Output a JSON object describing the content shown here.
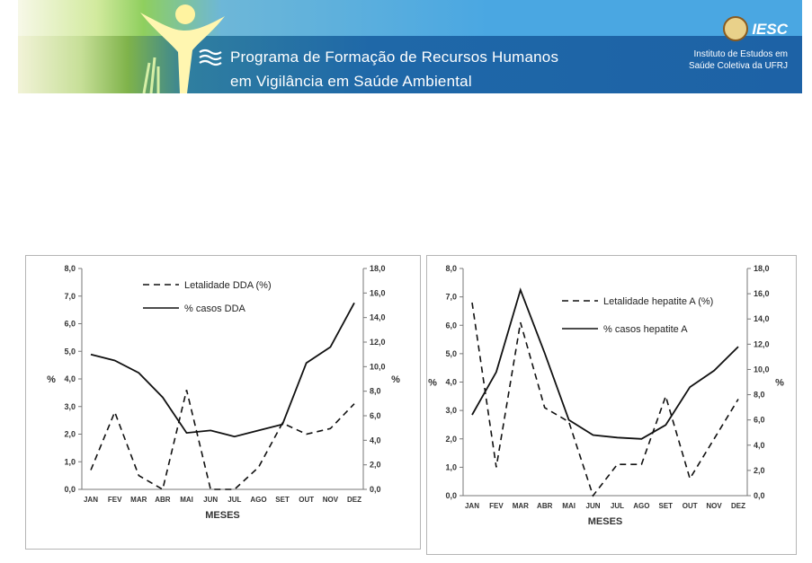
{
  "banner": {
    "title_line1": "Programa de Formação de Recursos Humanos",
    "title_line2": "em Vigilância em Saúde Ambiental",
    "institution_brand": "IESC",
    "institution_line1": "Instituto de Estudos em",
    "institution_line2": "Saúde Coletiva da UFRJ"
  },
  "chart_data": [
    {
      "type": "line",
      "xlabel": "MESES",
      "ylabel": "%",
      "y2label": "%",
      "categories": [
        "JAN",
        "FEV",
        "MAR",
        "ABR",
        "MAI",
        "JUN",
        "JUL",
        "AGO",
        "SET",
        "OUT",
        "NOV",
        "DEZ"
      ],
      "ylim": [
        0,
        8
      ],
      "y2lim": [
        0,
        18
      ],
      "yticks": [
        "0,0",
        "1,0",
        "2,0",
        "3,0",
        "4,0",
        "5,0",
        "6,0",
        "7,0",
        "8,0"
      ],
      "y2ticks": [
        "0,0",
        "2,0",
        "4,0",
        "6,0",
        "8,0",
        "10,0",
        "12,0",
        "14,0",
        "16,0",
        "18,0"
      ],
      "legend_position": "top-left",
      "series": [
        {
          "name": "Letalidade DDA (%)",
          "axis": "left",
          "style": "dashed",
          "values": [
            0.7,
            2.8,
            0.5,
            0.0,
            3.6,
            0.0,
            0.0,
            0.8,
            2.4,
            2.0,
            2.2,
            3.1
          ]
        },
        {
          "name": "% casos DDA",
          "axis": "right",
          "style": "solid",
          "values": [
            11.0,
            10.5,
            9.5,
            7.5,
            4.6,
            4.8,
            4.3,
            4.8,
            5.3,
            10.3,
            11.6,
            15.2
          ]
        }
      ]
    },
    {
      "type": "line",
      "xlabel": "MESES",
      "ylabel": "%",
      "y2label": "%",
      "categories": [
        "JAN",
        "FEV",
        "MAR",
        "ABR",
        "MAI",
        "JUN",
        "JUL",
        "AGO",
        "SET",
        "OUT",
        "NOV",
        "DEZ"
      ],
      "ylim": [
        0,
        8
      ],
      "y2lim": [
        0,
        18
      ],
      "yticks": [
        "0,0",
        "1,0",
        "2,0",
        "3,0",
        "4,0",
        "5,0",
        "6,0",
        "7,0",
        "8,0"
      ],
      "y2ticks": [
        "0,0",
        "2,0",
        "4,0",
        "6,0",
        "8,0",
        "10,0",
        "12,0",
        "14,0",
        "16,0",
        "18,0"
      ],
      "legend_position": "top-right",
      "series": [
        {
          "name": "Letalidade hepatite A (%)",
          "axis": "left",
          "style": "dashed",
          "values": [
            6.8,
            1.0,
            6.1,
            3.1,
            2.6,
            0.0,
            1.1,
            1.1,
            3.5,
            0.6,
            2.0,
            3.4
          ]
        },
        {
          "name": "% casos hepatite A",
          "axis": "right",
          "style": "solid",
          "values": [
            6.4,
            9.8,
            16.3,
            11.3,
            6.0,
            4.8,
            4.6,
            4.5,
            5.6,
            8.6,
            9.9,
            11.8
          ]
        }
      ]
    }
  ]
}
